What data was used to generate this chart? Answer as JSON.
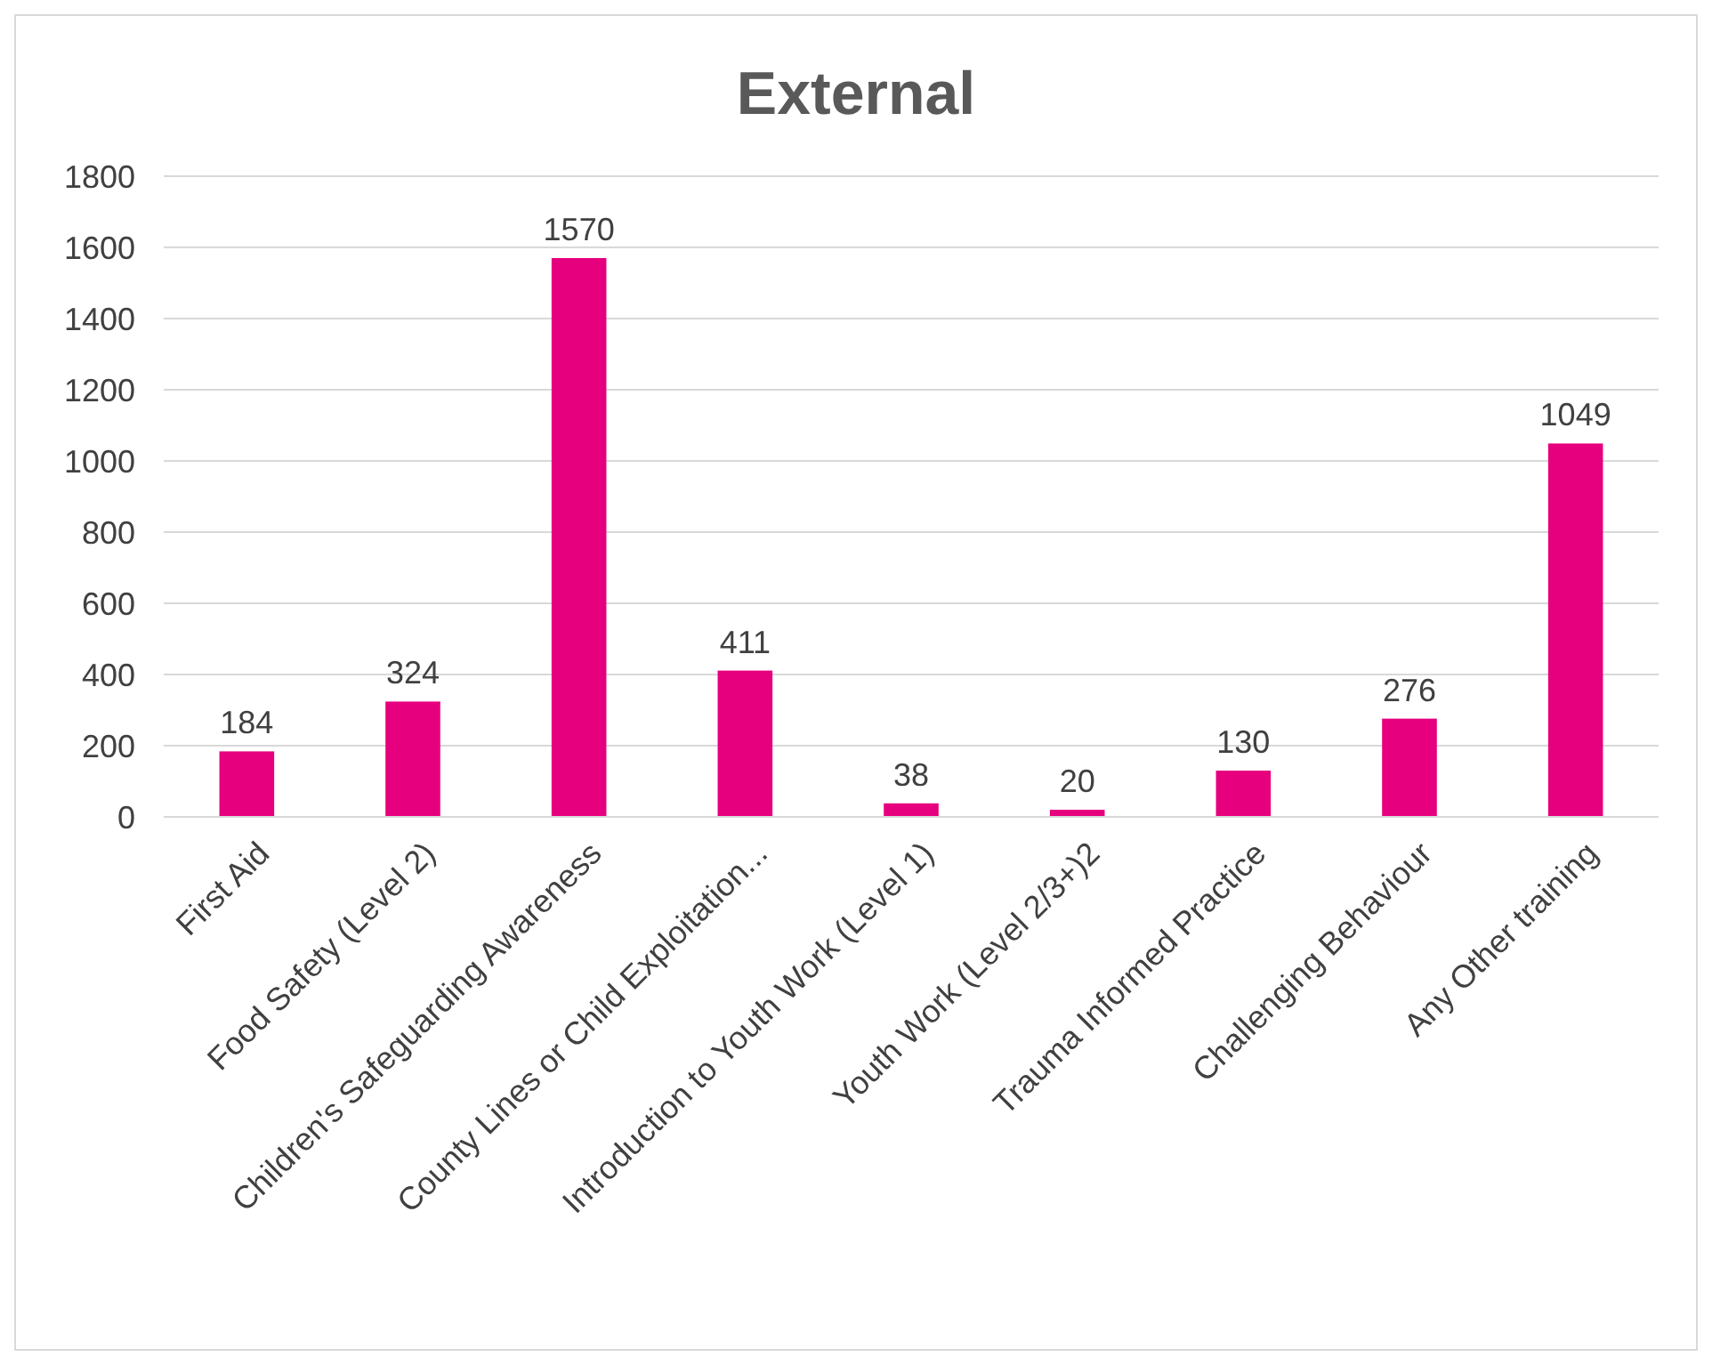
{
  "chart_data": {
    "type": "bar",
    "title": "External",
    "categories": [
      "First Aid",
      "Food Safety (Level 2)",
      "Children's Safeguarding Awareness",
      "County Lines or Child Exploitation...",
      "Introduction to Youth Work (Level 1)",
      "Youth Work (Level 2/3+)2",
      "Trauma Informed Practice",
      "Challenging Behaviour",
      "Any Other training"
    ],
    "values": [
      184,
      324,
      1570,
      411,
      38,
      20,
      130,
      276,
      1049
    ],
    "color": "#e6007e",
    "ylim": [
      0,
      1800
    ],
    "yticks": [
      0,
      200,
      400,
      600,
      800,
      1000,
      1200,
      1400,
      1600,
      1800
    ],
    "grid": "y",
    "data_labels": true
  }
}
